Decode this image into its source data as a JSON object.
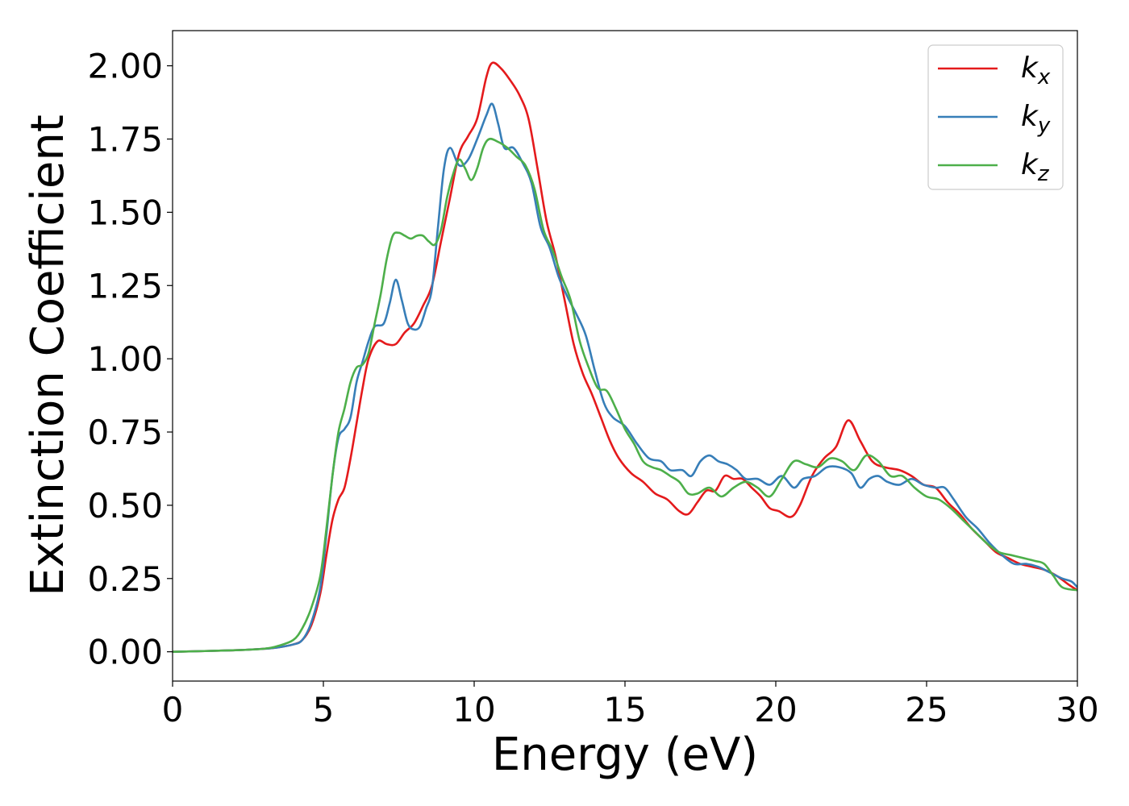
{
  "chart_data": {
    "type": "line",
    "title": "",
    "xlabel": "Energy (eV)",
    "ylabel": "Extinction Coefficient",
    "xlim": [
      0,
      30
    ],
    "ylim": [
      -0.1,
      2.12
    ],
    "grid": false,
    "legend_position": "top-right",
    "x_ticks": [
      0,
      5,
      10,
      15,
      20,
      25,
      30
    ],
    "x_tick_labels": [
      "0",
      "5",
      "10",
      "15",
      "20",
      "25",
      "30"
    ],
    "y_ticks": [
      0,
      0.25,
      0.5,
      0.75,
      1.0,
      1.25,
      1.5,
      1.75,
      2.0
    ],
    "y_tick_labels": [
      "0.00",
      "0.25",
      "0.50",
      "0.75",
      "1.00",
      "1.25",
      "1.50",
      "1.75",
      "2.00"
    ],
    "series": [
      {
        "name": "k_x",
        "label_main": "k",
        "label_sub": "x",
        "color": "#e41a1c",
        "points": [
          [
            0,
            0
          ],
          [
            2,
            0.005
          ],
          [
            3,
            0.01
          ],
          [
            3.5,
            0.015
          ],
          [
            4,
            0.025
          ],
          [
            4.3,
            0.04
          ],
          [
            4.6,
            0.09
          ],
          [
            4.9,
            0.2
          ],
          [
            5.1,
            0.33
          ],
          [
            5.3,
            0.45
          ],
          [
            5.5,
            0.52
          ],
          [
            5.7,
            0.56
          ],
          [
            5.9,
            0.66
          ],
          [
            6.1,
            0.78
          ],
          [
            6.3,
            0.9
          ],
          [
            6.5,
            1.0
          ],
          [
            6.8,
            1.06
          ],
          [
            7.1,
            1.05
          ],
          [
            7.4,
            1.05
          ],
          [
            7.7,
            1.09
          ],
          [
            8,
            1.12
          ],
          [
            8.3,
            1.18
          ],
          [
            8.6,
            1.25
          ],
          [
            8.9,
            1.4
          ],
          [
            9.2,
            1.55
          ],
          [
            9.5,
            1.7
          ],
          [
            9.8,
            1.76
          ],
          [
            10.1,
            1.82
          ],
          [
            10.4,
            1.96
          ],
          [
            10.6,
            2.01
          ],
          [
            10.9,
            1.99
          ],
          [
            11.2,
            1.95
          ],
          [
            11.5,
            1.9
          ],
          [
            11.8,
            1.82
          ],
          [
            12.1,
            1.65
          ],
          [
            12.4,
            1.47
          ],
          [
            12.7,
            1.35
          ],
          [
            13,
            1.2
          ],
          [
            13.3,
            1.05
          ],
          [
            13.6,
            0.95
          ],
          [
            13.9,
            0.88
          ],
          [
            14.2,
            0.8
          ],
          [
            14.5,
            0.72
          ],
          [
            14.8,
            0.66
          ],
          [
            15.2,
            0.61
          ],
          [
            15.6,
            0.58
          ],
          [
            16,
            0.54
          ],
          [
            16.4,
            0.52
          ],
          [
            16.8,
            0.48
          ],
          [
            17.1,
            0.47
          ],
          [
            17.4,
            0.51
          ],
          [
            17.7,
            0.55
          ],
          [
            18,
            0.55
          ],
          [
            18.3,
            0.6
          ],
          [
            18.6,
            0.59
          ],
          [
            18.9,
            0.59
          ],
          [
            19.2,
            0.56
          ],
          [
            19.5,
            0.53
          ],
          [
            19.8,
            0.49
          ],
          [
            20.1,
            0.48
          ],
          [
            20.5,
            0.46
          ],
          [
            20.8,
            0.5
          ],
          [
            21.2,
            0.6
          ],
          [
            21.6,
            0.66
          ],
          [
            22,
            0.7
          ],
          [
            22.4,
            0.79
          ],
          [
            22.8,
            0.72
          ],
          [
            23.2,
            0.65
          ],
          [
            23.6,
            0.63
          ],
          [
            24.1,
            0.62
          ],
          [
            24.5,
            0.6
          ],
          [
            24.9,
            0.57
          ],
          [
            25.3,
            0.56
          ],
          [
            25.7,
            0.51
          ],
          [
            26.1,
            0.47
          ],
          [
            26.5,
            0.42
          ],
          [
            26.9,
            0.38
          ],
          [
            27.3,
            0.34
          ],
          [
            27.7,
            0.32
          ],
          [
            28.1,
            0.3
          ],
          [
            28.5,
            0.29
          ],
          [
            28.9,
            0.28
          ],
          [
            29.3,
            0.26
          ],
          [
            29.7,
            0.23
          ],
          [
            30,
            0.21
          ]
        ]
      },
      {
        "name": "k_y",
        "label_main": "k",
        "label_sub": "y",
        "color": "#377eb8",
        "points": [
          [
            0,
            0
          ],
          [
            2,
            0.005
          ],
          [
            3,
            0.01
          ],
          [
            3.5,
            0.015
          ],
          [
            4,
            0.025
          ],
          [
            4.3,
            0.04
          ],
          [
            4.6,
            0.1
          ],
          [
            4.9,
            0.22
          ],
          [
            5.1,
            0.4
          ],
          [
            5.3,
            0.6
          ],
          [
            5.5,
            0.73
          ],
          [
            5.7,
            0.76
          ],
          [
            5.9,
            0.8
          ],
          [
            6.1,
            0.92
          ],
          [
            6.3,
            0.99
          ],
          [
            6.5,
            1.06
          ],
          [
            6.7,
            1.11
          ],
          [
            7,
            1.12
          ],
          [
            7.2,
            1.19
          ],
          [
            7.4,
            1.27
          ],
          [
            7.6,
            1.2
          ],
          [
            7.8,
            1.12
          ],
          [
            8,
            1.1
          ],
          [
            8.2,
            1.11
          ],
          [
            8.4,
            1.17
          ],
          [
            8.6,
            1.24
          ],
          [
            8.8,
            1.45
          ],
          [
            9,
            1.65
          ],
          [
            9.2,
            1.72
          ],
          [
            9.5,
            1.66
          ],
          [
            9.8,
            1.68
          ],
          [
            10.1,
            1.75
          ],
          [
            10.4,
            1.83
          ],
          [
            10.6,
            1.87
          ],
          [
            10.8,
            1.8
          ],
          [
            11,
            1.72
          ],
          [
            11.3,
            1.72
          ],
          [
            11.6,
            1.67
          ],
          [
            11.9,
            1.6
          ],
          [
            12.2,
            1.45
          ],
          [
            12.5,
            1.38
          ],
          [
            12.8,
            1.28
          ],
          [
            13.1,
            1.21
          ],
          [
            13.4,
            1.15
          ],
          [
            13.7,
            1.08
          ],
          [
            14,
            0.96
          ],
          [
            14.3,
            0.85
          ],
          [
            14.6,
            0.8
          ],
          [
            15,
            0.77
          ],
          [
            15.4,
            0.71
          ],
          [
            15.8,
            0.66
          ],
          [
            16.2,
            0.65
          ],
          [
            16.5,
            0.62
          ],
          [
            16.9,
            0.62
          ],
          [
            17.2,
            0.6
          ],
          [
            17.5,
            0.65
          ],
          [
            17.8,
            0.67
          ],
          [
            18.1,
            0.65
          ],
          [
            18.4,
            0.64
          ],
          [
            18.7,
            0.62
          ],
          [
            19,
            0.59
          ],
          [
            19.4,
            0.59
          ],
          [
            19.8,
            0.57
          ],
          [
            20.2,
            0.6
          ],
          [
            20.6,
            0.56
          ],
          [
            20.9,
            0.59
          ],
          [
            21.3,
            0.6
          ],
          [
            21.7,
            0.63
          ],
          [
            22.1,
            0.63
          ],
          [
            22.5,
            0.61
          ],
          [
            22.8,
            0.56
          ],
          [
            23.1,
            0.59
          ],
          [
            23.4,
            0.6
          ],
          [
            23.7,
            0.58
          ],
          [
            24.1,
            0.57
          ],
          [
            24.5,
            0.59
          ],
          [
            24.9,
            0.57
          ],
          [
            25.3,
            0.56
          ],
          [
            25.6,
            0.56
          ],
          [
            25.9,
            0.52
          ],
          [
            26.3,
            0.46
          ],
          [
            26.7,
            0.42
          ],
          [
            27.1,
            0.37
          ],
          [
            27.5,
            0.33
          ],
          [
            27.9,
            0.3
          ],
          [
            28.3,
            0.3
          ],
          [
            28.7,
            0.29
          ],
          [
            29.1,
            0.27
          ],
          [
            29.5,
            0.25
          ],
          [
            29.8,
            0.24
          ],
          [
            30,
            0.22
          ]
        ]
      },
      {
        "name": "k_z",
        "label_main": "k",
        "label_sub": "z",
        "color": "#4daf4a",
        "points": [
          [
            0,
            0
          ],
          [
            2,
            0.005
          ],
          [
            3,
            0.01
          ],
          [
            3.5,
            0.02
          ],
          [
            4,
            0.04
          ],
          [
            4.3,
            0.08
          ],
          [
            4.6,
            0.15
          ],
          [
            4.9,
            0.26
          ],
          [
            5.1,
            0.42
          ],
          [
            5.3,
            0.6
          ],
          [
            5.5,
            0.75
          ],
          [
            5.7,
            0.83
          ],
          [
            5.9,
            0.92
          ],
          [
            6.1,
            0.97
          ],
          [
            6.3,
            0.98
          ],
          [
            6.5,
            1.02
          ],
          [
            6.7,
            1.12
          ],
          [
            6.9,
            1.22
          ],
          [
            7.1,
            1.34
          ],
          [
            7.3,
            1.42
          ],
          [
            7.5,
            1.43
          ],
          [
            7.7,
            1.42
          ],
          [
            7.9,
            1.41
          ],
          [
            8.1,
            1.42
          ],
          [
            8.3,
            1.42
          ],
          [
            8.5,
            1.4
          ],
          [
            8.7,
            1.39
          ],
          [
            8.9,
            1.44
          ],
          [
            9.1,
            1.55
          ],
          [
            9.3,
            1.63
          ],
          [
            9.5,
            1.68
          ],
          [
            9.7,
            1.65
          ],
          [
            9.9,
            1.61
          ],
          [
            10.1,
            1.65
          ],
          [
            10.3,
            1.72
          ],
          [
            10.5,
            1.75
          ],
          [
            10.8,
            1.74
          ],
          [
            11.1,
            1.72
          ],
          [
            11.4,
            1.69
          ],
          [
            11.7,
            1.66
          ],
          [
            12,
            1.58
          ],
          [
            12.3,
            1.44
          ],
          [
            12.6,
            1.37
          ],
          [
            12.9,
            1.28
          ],
          [
            13.2,
            1.2
          ],
          [
            13.5,
            1.06
          ],
          [
            13.8,
            0.97
          ],
          [
            14.1,
            0.9
          ],
          [
            14.4,
            0.89
          ],
          [
            14.7,
            0.83
          ],
          [
            15,
            0.76
          ],
          [
            15.3,
            0.71
          ],
          [
            15.6,
            0.65
          ],
          [
            15.9,
            0.63
          ],
          [
            16.2,
            0.62
          ],
          [
            16.5,
            0.6
          ],
          [
            16.8,
            0.58
          ],
          [
            17.1,
            0.54
          ],
          [
            17.4,
            0.54
          ],
          [
            17.8,
            0.56
          ],
          [
            18.2,
            0.53
          ],
          [
            18.6,
            0.56
          ],
          [
            19,
            0.58
          ],
          [
            19.4,
            0.56
          ],
          [
            19.8,
            0.53
          ],
          [
            20.2,
            0.59
          ],
          [
            20.6,
            0.65
          ],
          [
            21,
            0.64
          ],
          [
            21.4,
            0.63
          ],
          [
            21.8,
            0.66
          ],
          [
            22.2,
            0.65
          ],
          [
            22.6,
            0.62
          ],
          [
            23,
            0.67
          ],
          [
            23.4,
            0.65
          ],
          [
            23.8,
            0.6
          ],
          [
            24.2,
            0.6
          ],
          [
            24.6,
            0.56
          ],
          [
            25,
            0.53
          ],
          [
            25.4,
            0.52
          ],
          [
            25.8,
            0.49
          ],
          [
            26.2,
            0.45
          ],
          [
            26.6,
            0.41
          ],
          [
            27,
            0.37
          ],
          [
            27.4,
            0.34
          ],
          [
            27.8,
            0.33
          ],
          [
            28.2,
            0.32
          ],
          [
            28.6,
            0.31
          ],
          [
            28.9,
            0.3
          ],
          [
            29.2,
            0.26
          ],
          [
            29.5,
            0.22
          ],
          [
            30,
            0.21
          ]
        ]
      }
    ]
  }
}
